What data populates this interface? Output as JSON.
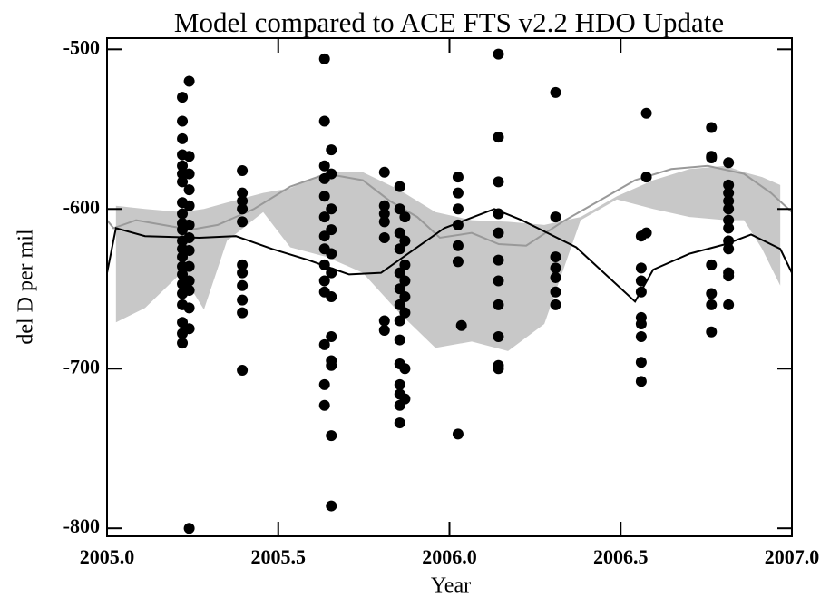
{
  "chart_data": {
    "type": "scatter",
    "title": "Model compared to ACE FTS v2.2 HDO Update",
    "xlabel": "Year",
    "ylabel": "del D per mil",
    "xlim": [
      2005,
      2007
    ],
    "ylim": [
      -805,
      -493
    ],
    "xticks": [
      {
        "value": 2005,
        "label": "2005.0"
      },
      {
        "value": 2005.5,
        "label": "2005.5"
      },
      {
        "value": 2006,
        "label": "2006.0"
      },
      {
        "value": 2006.5,
        "label": "2006.5"
      },
      {
        "value": 2007,
        "label": "2007.0"
      }
    ],
    "yticks": [
      -500,
      -600,
      -700,
      -800
    ],
    "series": [
      {
        "type": "band",
        "color": "#c8c8c8",
        "x": [
          2005.026,
          2005.111,
          2005.217,
          2005.283,
          2005.35,
          2005.456,
          2005.535,
          2005.641,
          2005.747,
          2005.853,
          2005.959,
          2006.065,
          2006.171,
          2006.277,
          2006.383,
          2006.489,
          2006.595,
          2006.701,
          2006.807,
          2006.86,
          2006.913,
          2006.966
        ],
        "upper": [
          -598,
          -600,
          -602,
          -600,
          -596,
          -590,
          -587,
          -577,
          -577,
          -588,
          -602,
          -607,
          -608,
          -610,
          -605,
          -592,
          -582,
          -575,
          -573,
          -577,
          -580,
          -585
        ],
        "lower": [
          -671,
          -662,
          -640,
          -663,
          -620,
          -602,
          -624,
          -630,
          -640,
          -665,
          -687,
          -683,
          -689,
          -672,
          -607,
          -594,
          -600,
          -605,
          -607,
          -607,
          -625,
          -648
        ]
      },
      {
        "type": "line",
        "color": "#999999",
        "x": [
          2005.0,
          2005.019,
          2005.085,
          2005.164,
          2005.244,
          2005.323,
          2005.429,
          2005.535,
          2005.641,
          2005.747,
          2005.826,
          2005.906,
          2005.972,
          2006.065,
          2006.144,
          2006.224,
          2006.33,
          2006.436,
          2006.542,
          2006.648,
          2006.754,
          2006.86,
          2006.939,
          2007.0
        ],
        "values": [
          -607,
          -612,
          -607,
          -610,
          -613,
          -610,
          -600,
          -586,
          -578,
          -582,
          -595,
          -605,
          -618,
          -615,
          -622,
          -623,
          -608,
          -595,
          -582,
          -575,
          -573,
          -578,
          -590,
          -602
        ]
      },
      {
        "type": "line",
        "color": "#000000",
        "x": [
          2005.0,
          2005.026,
          2005.111,
          2005.27,
          2005.376,
          2005.482,
          2005.588,
          2005.707,
          2005.8,
          2005.879,
          2005.985,
          2006.131,
          2006.211,
          2006.37,
          2006.542,
          2006.595,
          2006.701,
          2006.807,
          2006.881,
          2006.966,
          2007.0
        ],
        "values": [
          -640,
          -612,
          -617,
          -618,
          -617,
          -625,
          -632,
          -641,
          -640,
          -628,
          -612,
          -600,
          -607,
          -624,
          -658,
          -638,
          -628,
          -622,
          -616,
          -625,
          -640
        ]
      },
      {
        "type": "scatter",
        "color": "#000000",
        "x": [
          2005.22,
          2005.22,
          2005.22,
          2005.22,
          2005.22,
          2005.22,
          2005.22,
          2005.22,
          2005.22,
          2005.22,
          2005.22,
          2005.22,
          2005.22,
          2005.22,
          2005.22,
          2005.22,
          2005.22,
          2005.22,
          2005.22,
          2005.22,
          2005.22,
          2005.22,
          2005.24,
          2005.24,
          2005.24,
          2005.24,
          2005.24,
          2005.24,
          2005.24,
          2005.24,
          2005.24,
          2005.24,
          2005.24,
          2005.24,
          2005.24,
          2005.24,
          2005.395,
          2005.395,
          2005.395,
          2005.395,
          2005.395,
          2005.395,
          2005.395,
          2005.395,
          2005.395,
          2005.395,
          2005.395,
          2005.635,
          2005.635,
          2005.635,
          2005.635,
          2005.635,
          2005.635,
          2005.635,
          2005.635,
          2005.635,
          2005.635,
          2005.635,
          2005.635,
          2005.635,
          2005.635,
          2005.655,
          2005.655,
          2005.655,
          2005.655,
          2005.655,
          2005.655,
          2005.655,
          2005.655,
          2005.655,
          2005.655,
          2005.655,
          2005.655,
          2005.81,
          2005.81,
          2005.81,
          2005.81,
          2005.81,
          2005.81,
          2005.81,
          2005.855,
          2005.855,
          2005.855,
          2005.855,
          2005.855,
          2005.855,
          2005.855,
          2005.855,
          2005.855,
          2005.855,
          2005.855,
          2005.855,
          2005.855,
          2005.855,
          2005.87,
          2005.87,
          2005.87,
          2005.87,
          2005.87,
          2005.87,
          2005.87,
          2005.87,
          2006.025,
          2006.025,
          2006.025,
          2006.025,
          2006.025,
          2006.025,
          2006.025,
          2006.035,
          2006.143,
          2006.143,
          2006.143,
          2006.143,
          2006.143,
          2006.143,
          2006.143,
          2006.143,
          2006.143,
          2006.143,
          2006.143,
          2006.31,
          2006.31,
          2006.31,
          2006.31,
          2006.31,
          2006.31,
          2006.31,
          2006.56,
          2006.56,
          2006.56,
          2006.56,
          2006.56,
          2006.56,
          2006.56,
          2006.56,
          2006.56,
          2006.575,
          2006.575,
          2006.575,
          2006.765,
          2006.765,
          2006.765,
          2006.765,
          2006.765,
          2006.765,
          2006.765,
          2006.815,
          2006.815,
          2006.815,
          2006.815,
          2006.815,
          2006.815,
          2006.815,
          2006.815,
          2006.815,
          2006.815,
          2006.815,
          2006.815
        ],
        "values": [
          -530,
          -545,
          -556,
          -566,
          -573,
          -578,
          -583,
          -596,
          -603,
          -609,
          -613,
          -620,
          -625,
          -630,
          -636,
          -641,
          -647,
          -653,
          -660,
          -671,
          -678,
          -684,
          -520,
          -567,
          -578,
          -588,
          -598,
          -610,
          -618,
          -626,
          -636,
          -645,
          -651,
          -662,
          -675,
          -800,
          -576,
          -590,
          -595,
          -600,
          -608,
          -635,
          -640,
          -648,
          -657,
          -665,
          -701,
          -506,
          -545,
          -573,
          -581,
          -592,
          -605,
          -617,
          -625,
          -635,
          -645,
          -652,
          -685,
          -710,
          -723,
          -563,
          -578,
          -600,
          -613,
          -628,
          -640,
          -655,
          -680,
          -695,
          -698,
          -742,
          -786,
          -577,
          -598,
          -603,
          -608,
          -618,
          -670,
          -676,
          -586,
          -600,
          -615,
          -625,
          -640,
          -650,
          -660,
          -670,
          -682,
          -697,
          -710,
          -716,
          -723,
          -734,
          -605,
          -620,
          -635,
          -645,
          -655,
          -665,
          -700,
          -719,
          -580,
          -590,
          -600,
          -610,
          -623,
          -633,
          -741,
          -673,
          -503,
          -555,
          -583,
          -603,
          -615,
          -632,
          -645,
          -660,
          -680,
          -700,
          -698,
          -527,
          -605,
          -630,
          -637,
          -643,
          -652,
          -660,
          -617,
          -637,
          -645,
          -652,
          -668,
          -672,
          -680,
          -696,
          -708,
          -540,
          -580,
          -615,
          -549,
          -567,
          -568,
          -635,
          -653,
          -660,
          -677,
          -571,
          -585,
          -590,
          -595,
          -600,
          -607,
          -612,
          -620,
          -625,
          -640,
          -642,
          -660
        ]
      }
    ]
  }
}
